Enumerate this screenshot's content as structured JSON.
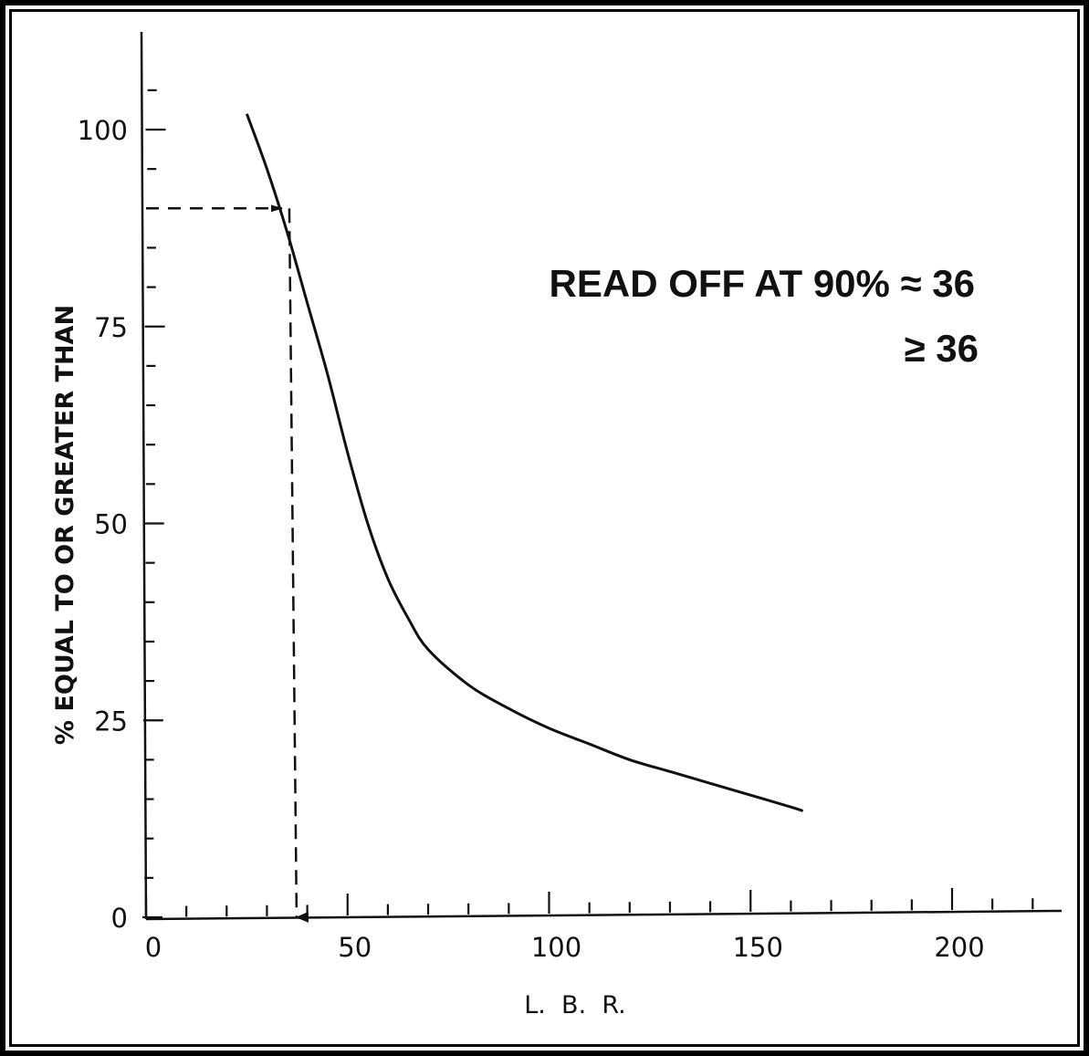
{
  "chart_data": {
    "type": "line",
    "title": "",
    "xlabel": "L.  B.  R.",
    "ylabel": "% EQUAL TO OR GREATER THAN",
    "xlim": [
      0,
      225
    ],
    "ylim": [
      0,
      110
    ],
    "x_ticks": [
      0,
      50,
      100,
      150,
      200
    ],
    "y_ticks": [
      0,
      25,
      50,
      75,
      100
    ],
    "x_tick_labels": [
      "0",
      "50",
      "100",
      "150",
      "200"
    ],
    "y_tick_labels": [
      "0",
      "25",
      "50",
      "75",
      "100"
    ],
    "grid": false,
    "series": [
      {
        "x": [
          25,
          30,
          35,
          40,
          45,
          50,
          55,
          60,
          65,
          70,
          80,
          90,
          100,
          110,
          120,
          130,
          140,
          150,
          160,
          163
        ],
        "y": [
          102,
          95,
          87,
          78,
          69,
          59,
          50,
          43,
          38,
          34,
          29.5,
          26.5,
          24,
          22,
          20,
          18.5,
          17,
          15.5,
          14,
          13.5
        ]
      }
    ],
    "annotations": {
      "read_line_y": 90,
      "read_line_x": 36,
      "note_line1": "READ OFF AT 90% ≈ 36",
      "note_line2": "≥ 36"
    }
  }
}
